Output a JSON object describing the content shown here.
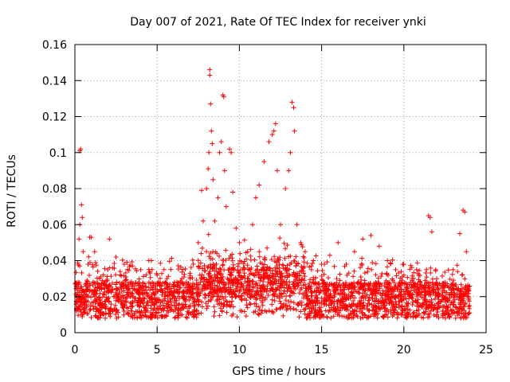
{
  "chart_data": {
    "type": "scatter",
    "title": "Day 007 of 2021, Rate Of TEC Index for receiver ynki",
    "xlabel": "GPS time / hours",
    "ylabel": "ROTI / TECUs",
    "xlim": [
      0,
      25
    ],
    "ylim": [
      0,
      0.16
    ],
    "xticks": [
      0,
      5,
      10,
      15,
      20,
      25
    ],
    "xtick_labels": [
      "0",
      "5",
      "10",
      "15",
      "20",
      "25"
    ],
    "yticks": [
      0,
      0.02,
      0.04,
      0.06,
      0.08,
      0.1,
      0.12,
      0.14,
      0.16
    ],
    "ytick_labels": [
      "0",
      "0.02",
      "0.04",
      "0.06",
      "0.08",
      "0.1",
      "0.12",
      "0.14",
      "0.16"
    ],
    "grid": true,
    "marker": "+",
    "color": "#ff0000",
    "description_series": {
      "name": "ROTI",
      "points": [
        [
          0.1,
          0.012
        ],
        [
          0.2,
          0.028
        ],
        [
          0.25,
          0.052
        ],
        [
          0.3,
          0.06
        ],
        [
          0.3,
          0.101
        ],
        [
          0.35,
          0.102
        ],
        [
          0.4,
          0.071
        ],
        [
          0.45,
          0.064
        ],
        [
          0.5,
          0.045
        ],
        [
          0.8,
          0.038
        ],
        [
          0.9,
          0.053
        ],
        [
          1.0,
          0.053
        ],
        [
          1.2,
          0.045
        ],
        [
          1.5,
          0.03
        ],
        [
          2.0,
          0.035
        ],
        [
          2.1,
          0.052
        ],
        [
          2.5,
          0.042
        ],
        [
          3.0,
          0.038
        ],
        [
          3.5,
          0.037
        ],
        [
          4.0,
          0.035
        ],
        [
          4.5,
          0.04
        ],
        [
          5.0,
          0.032
        ],
        [
          5.5,
          0.028
        ],
        [
          6.0,
          0.026
        ],
        [
          6.5,
          0.03
        ],
        [
          7.0,
          0.033
        ],
        [
          7.5,
          0.05
        ],
        [
          7.7,
          0.079
        ],
        [
          7.8,
          0.062
        ],
        [
          8.0,
          0.08
        ],
        [
          8.1,
          0.091
        ],
        [
          8.15,
          0.1
        ],
        [
          8.2,
          0.143
        ],
        [
          8.2,
          0.146
        ],
        [
          8.25,
          0.127
        ],
        [
          8.3,
          0.112
        ],
        [
          8.35,
          0.105
        ],
        [
          8.4,
          0.085
        ],
        [
          8.5,
          0.062
        ],
        [
          8.7,
          0.075
        ],
        [
          8.8,
          0.1
        ],
        [
          8.9,
          0.106
        ],
        [
          9.0,
          0.132
        ],
        [
          9.05,
          0.131
        ],
        [
          9.1,
          0.09
        ],
        [
          9.2,
          0.07
        ],
        [
          9.4,
          0.102
        ],
        [
          9.5,
          0.1
        ],
        [
          9.6,
          0.078
        ],
        [
          9.8,
          0.058
        ],
        [
          10.0,
          0.05
        ],
        [
          10.5,
          0.045
        ],
        [
          10.8,
          0.06
        ],
        [
          11.0,
          0.075
        ],
        [
          11.2,
          0.082
        ],
        [
          11.5,
          0.095
        ],
        [
          11.8,
          0.106
        ],
        [
          12.0,
          0.11
        ],
        [
          12.1,
          0.112
        ],
        [
          12.2,
          0.116
        ],
        [
          12.3,
          0.09
        ],
        [
          12.5,
          0.06
        ],
        [
          12.8,
          0.08
        ],
        [
          13.0,
          0.09
        ],
        [
          13.1,
          0.1
        ],
        [
          13.2,
          0.128
        ],
        [
          13.3,
          0.125
        ],
        [
          13.35,
          0.112
        ],
        [
          13.5,
          0.06
        ],
        [
          14.0,
          0.045
        ],
        [
          14.5,
          0.04
        ],
        [
          15.0,
          0.038
        ],
        [
          15.5,
          0.043
        ],
        [
          16.0,
          0.05
        ],
        [
          16.5,
          0.038
        ],
        [
          17.0,
          0.045
        ],
        [
          17.5,
          0.052
        ],
        [
          18.0,
          0.054
        ],
        [
          18.5,
          0.048
        ],
        [
          19.0,
          0.04
        ],
        [
          19.5,
          0.035
        ],
        [
          20.0,
          0.032
        ],
        [
          20.5,
          0.03
        ],
        [
          21.0,
          0.028
        ],
        [
          21.5,
          0.065
        ],
        [
          21.6,
          0.064
        ],
        [
          21.7,
          0.056
        ],
        [
          22.0,
          0.03
        ],
        [
          22.5,
          0.028
        ],
        [
          23.0,
          0.035
        ],
        [
          23.4,
          0.055
        ],
        [
          23.6,
          0.068
        ],
        [
          23.7,
          0.067
        ],
        [
          23.8,
          0.045
        ],
        [
          24.0,
          0.015
        ]
      ]
    }
  }
}
